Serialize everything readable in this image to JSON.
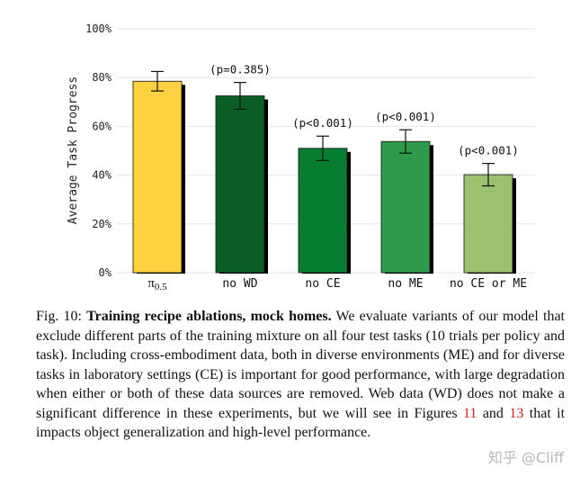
{
  "chart_data": {
    "type": "bar",
    "categories": [
      "π0.5",
      "no WD",
      "no CE",
      "no ME",
      "no CE or ME"
    ],
    "values": [
      78.5,
      72.5,
      51.0,
      53.8,
      40.2
    ],
    "error": [
      4.0,
      5.5,
      5.0,
      4.8,
      4.6
    ],
    "annotations": [
      "",
      "(p=0.385)",
      "(p<0.001)",
      "(p<0.001)",
      "(p<0.001)"
    ],
    "colors": [
      "#fdd13f",
      "#0b5e26",
      "#067d31",
      "#2f9a4b",
      "#9bc070"
    ],
    "ylabel": "Average Task Progress",
    "xlabel": "",
    "ylim": [
      0,
      100
    ],
    "yticks": [
      0,
      20,
      40,
      60,
      80,
      100
    ],
    "ytick_labels": [
      "0%",
      "20%",
      "40%",
      "60%",
      "80%",
      "100%"
    ],
    "grid": true
  },
  "caption": {
    "fig_label": "Fig. 10:",
    "title": "Training recipe ablations, mock homes.",
    "text_1": "We evaluate variants of our model that exclude different parts of the training mixture on all four test tasks (10 trials per policy and task). Including cross-embodiment data, both in diverse environments (ME) and for diverse tasks in laboratory settings (CE) is important for good performance, with large degradation when either or both of these data sources are removed. Web data (WD) does not make a significant difference in these experiments, but we will see in Figures",
    "ref_1": "11",
    "text_2": "and",
    "ref_2": "13",
    "text_3": "that it impacts object generalization and high-level performance."
  },
  "watermark": "知乎 @Cliff"
}
